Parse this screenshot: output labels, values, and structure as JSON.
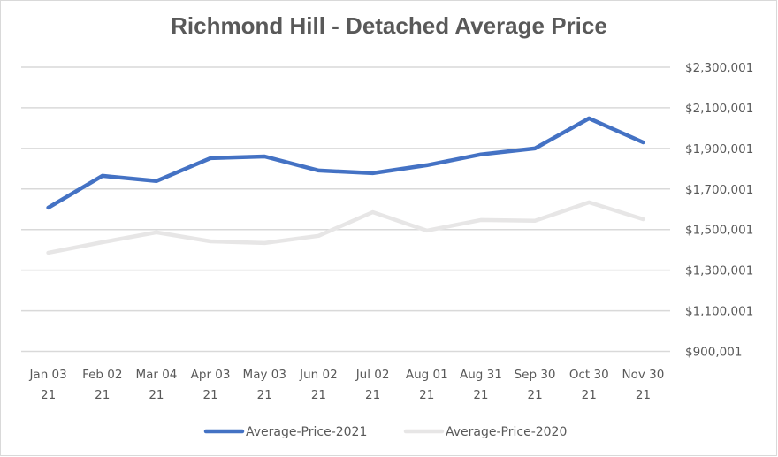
{
  "chart_data": {
    "type": "line",
    "title": "Richmond Hill - Detached Average Price",
    "xlabel": "",
    "ylabel": "",
    "ylim": [
      900001,
      2300001
    ],
    "yticks": [
      2300001,
      2100001,
      1900001,
      1700001,
      1500001,
      1300001,
      1100001,
      900001
    ],
    "ytick_labels": [
      "$2,300,001",
      "$2,100,001",
      "$1,900,001",
      "$1,700,001",
      "$1,500,001",
      "$1,300,001",
      "$1,100,001",
      "$900,001"
    ],
    "y_axis_position": "right",
    "grid": true,
    "legend_position": "bottom",
    "categories": [
      [
        "Jan 03",
        "21"
      ],
      [
        "Feb 02",
        "21"
      ],
      [
        "Mar 04",
        "21"
      ],
      [
        "Apr 03",
        "21"
      ],
      [
        "May 03",
        "21"
      ],
      [
        "Jun 02",
        "21"
      ],
      [
        "Jul 02",
        "21"
      ],
      [
        "Aug 01",
        "21"
      ],
      [
        "Aug 31",
        "21"
      ],
      [
        "Sep 30",
        "21"
      ],
      [
        "Oct 30",
        "21"
      ],
      [
        "Nov 30",
        "21"
      ]
    ],
    "series": [
      {
        "name": "Average-Price-2021",
        "color": "#4472C4",
        "values": [
          1608000,
          1765000,
          1739000,
          1852000,
          1860000,
          1791000,
          1778000,
          1817000,
          1870000,
          1900000,
          2048000,
          1930000
        ]
      },
      {
        "name": "Average-Price-2020",
        "color": "#E7E6E6",
        "values": [
          1386000,
          1438000,
          1486000,
          1442000,
          1434000,
          1469000,
          1586000,
          1495000,
          1547000,
          1543000,
          1634000,
          1551000
        ]
      }
    ]
  }
}
